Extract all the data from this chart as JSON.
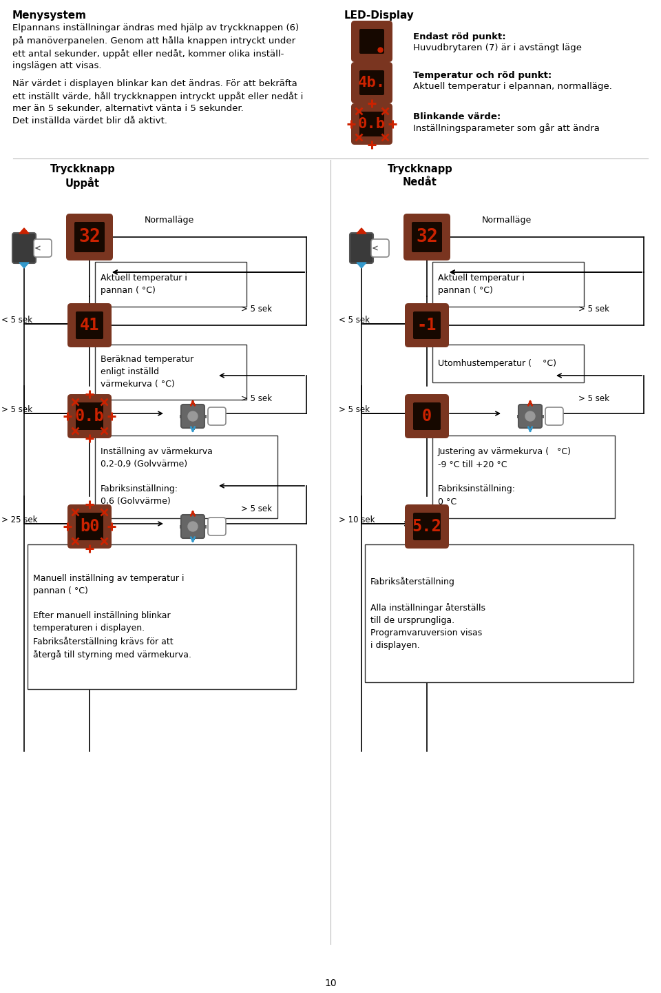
{
  "bg_color": "#ffffff",
  "red_color": "#cc2200",
  "brown_color": "#7a3520",
  "header_left_title": "Menysystem",
  "header_left_para1": "Elpannans inställningar ändras med hjälp av tryckknappen (6)\npå manöverpanelen. Genom att hålla knappen intryckt under\nett antal sekunder, uppåt eller nedåt, kommer olika inställ-\ningslägen att visas.",
  "header_left_para2": "När värdet i displayen blinkar kan det ändras. För att bekräfta\nett inställt värde, håll tryckknappen intryckt uppåt eller nedåt i\nmer än 5 sekunder, alternativt vänta i 5 sekunder.\nDet inställda värdet blir då aktivt.",
  "header_right_title": "LED-Display",
  "led1_label": "Endast röd punkt:",
  "led1_desc": "Huvudbrytaren (7) är i avstängt läge",
  "led2_label": "Temperatur och röd punkt:",
  "led2_desc": "Aktuell temperatur i elpannan, normalläge.",
  "led2_text": "4b.",
  "led3_label": "Blinkande värde:",
  "led3_desc": "Inställningsparameter som går att ändra",
  "led3_text": "0.b",
  "col_left": "Tryckknapp\nUppåt",
  "col_right": "Tryckknapp\nNedåt",
  "normalläge": "Normalläge",
  "l_box1": "Aktuell temperatur i\npannan ( °C)",
  "l_disp1": "32",
  "l_disp2": "41",
  "l_label2a": "< 5 sek",
  "l_label2b": "> 5 sek",
  "l_box2": "Beräknad temperatur\nenligt inställd\nvärmekurva ( °C)",
  "l_disp3": "0.b",
  "l_label3a": "> 5 sek",
  "l_label3b": "> 5 sek",
  "l_box3": "Inställning av värmekurva\n0,2-0,9 (Golvvärme)\n\nFabriksinställning:\n0,6 (Golvvärme)",
  "l_disp4": "b0",
  "l_label4a": "> 25 sek",
  "l_label4b": "> 5 sek",
  "l_box4": "Manuell inställning av temperatur i\npannan ( °C)\n\nEfter manuell inställning blinkar\ntemperaturen i displayen.\nFabriksåterställning krävs för att\nåtergå till styrning med värmekurva.",
  "r_box1": "Aktuell temperatur i\npannan ( °C)",
  "r_disp1": "32",
  "r_disp2": "-1",
  "r_label2a": "< 5 sek",
  "r_label2b": "> 5 sek",
  "r_box2": "Utomhustemperatur (    °C)",
  "r_disp3": "0",
  "r_label3a": "> 5 sek",
  "r_label3b": "> 5 sek",
  "r_box3": "Justering av värmekurva (   °C)\n-9 °C till +20 °C\n\nFabriksinställning:\n0 °C",
  "r_disp4": "5.2",
  "r_label4a": "> 10 sek",
  "r_box4": "Fabriksåterställning\n\nAlla inställningar återställs\ntill de ursprungliga.\nProgramvaruversion visas\ni displayen.",
  "page_number": "10"
}
